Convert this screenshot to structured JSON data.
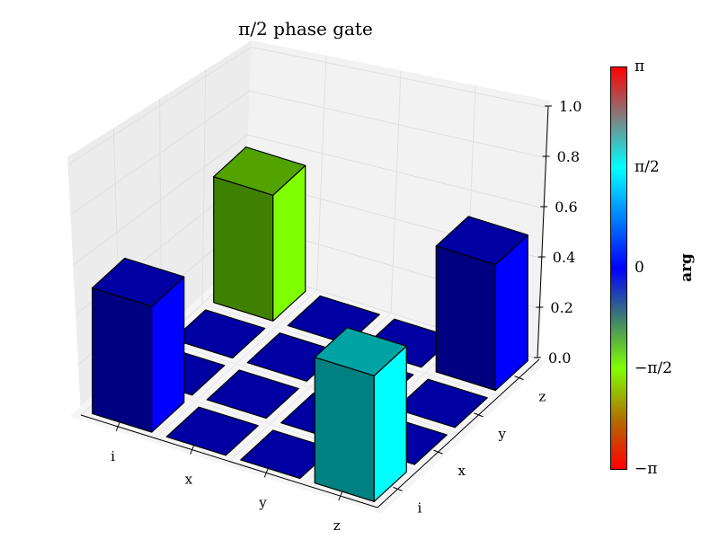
{
  "chart_data": {
    "type": "bar3d",
    "title": "π/2 phase gate",
    "x_tick_labels": [
      "i",
      "x",
      "y",
      "z"
    ],
    "y_tick_labels": [
      "i",
      "x",
      "y",
      "z"
    ],
    "z_ticks": [
      "0.0",
      "0.2",
      "0.4",
      "0.6",
      "0.8",
      "1.0"
    ],
    "zlim": [
      0,
      1.0
    ],
    "grid": true,
    "magnitude": [
      [
        0.5,
        0,
        0,
        0.5
      ],
      [
        0,
        0,
        0,
        0
      ],
      [
        0,
        0,
        0,
        0
      ],
      [
        0.5,
        0,
        0,
        0.5
      ]
    ],
    "phase": [
      [
        0,
        0,
        0,
        -1.5708
      ],
      [
        0,
        0,
        0,
        0
      ],
      [
        0,
        0,
        0,
        0
      ],
      [
        1.5708,
        0,
        0,
        0
      ]
    ],
    "colorbar": {
      "label": "arg",
      "range": [
        -3.1416,
        3.1416
      ],
      "tick_labels": [
        "π",
        "π/2",
        "0",
        "−π/2",
        "−π"
      ],
      "colors": [
        "#ff0000",
        "#b07000",
        "#80ff00",
        "#3f7f6f",
        "#0000ff",
        "#0080ff",
        "#00ffff",
        "#808080",
        "#ff0000"
      ]
    }
  }
}
